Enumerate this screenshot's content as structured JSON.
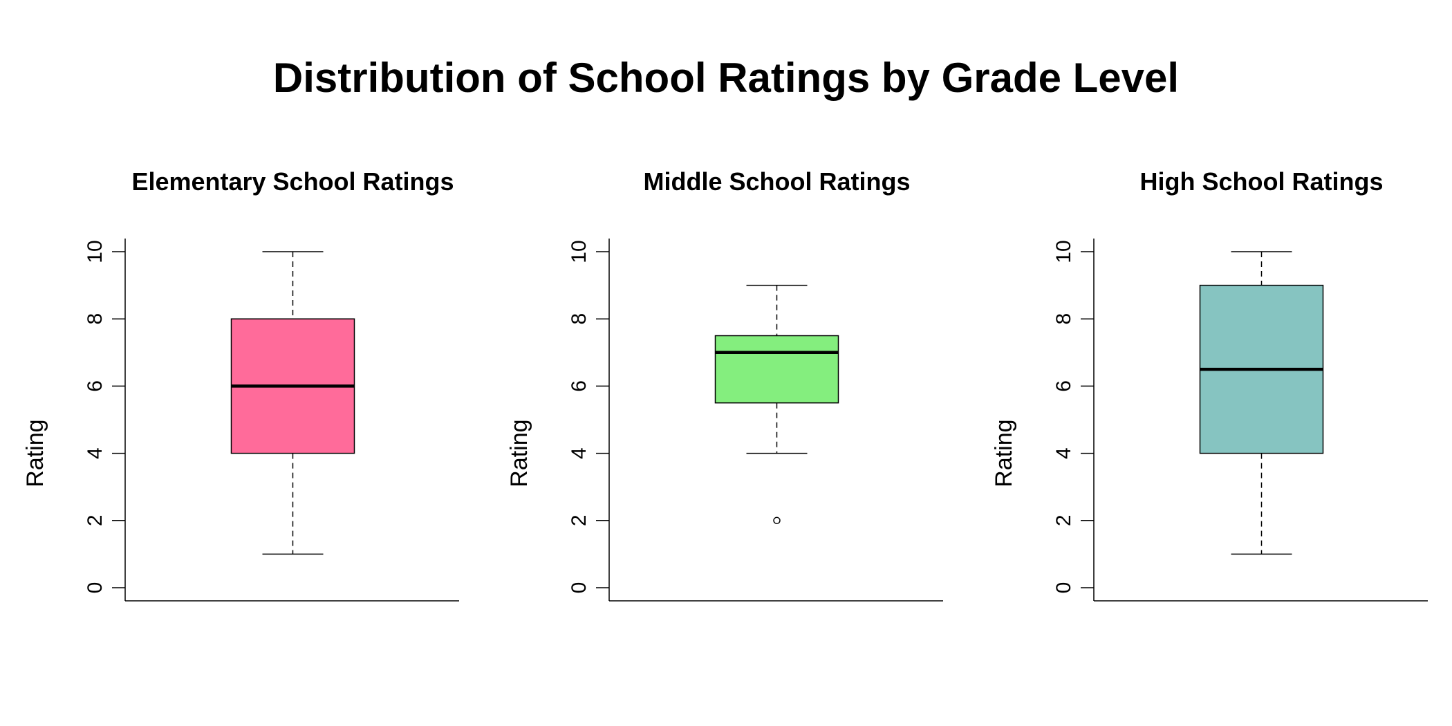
{
  "title": "Distribution of School Ratings by Grade Level",
  "chart_data": [
    {
      "type": "boxplot",
      "title": "Elementary School Ratings",
      "ylabel": "Rating",
      "xlabel": "",
      "ylim": [
        0,
        10
      ],
      "yticks": [
        0,
        2,
        4,
        6,
        8,
        10
      ],
      "yticklabels": [
        "0",
        "2",
        "4",
        "6",
        "8",
        "10"
      ],
      "fill": "#FF6B9A",
      "stats": {
        "whisker_low": 1,
        "q1": 4,
        "median": 6,
        "q3": 8,
        "whisker_high": 10,
        "outliers": []
      }
    },
    {
      "type": "boxplot",
      "title": "Middle School Ratings",
      "ylabel": "Rating",
      "xlabel": "",
      "ylim": [
        0,
        10
      ],
      "yticks": [
        0,
        2,
        4,
        6,
        8,
        10
      ],
      "yticklabels": [
        "0",
        "2",
        "4",
        "6",
        "8",
        "10"
      ],
      "fill": "#84EE7E",
      "stats": {
        "whisker_low": 4,
        "q1": 5.5,
        "median": 7,
        "q3": 7.5,
        "whisker_high": 9,
        "outliers": [
          2
        ]
      }
    },
    {
      "type": "boxplot",
      "title": "High School Ratings",
      "ylabel": "Rating",
      "xlabel": "",
      "ylim": [
        0,
        10
      ],
      "yticks": [
        0,
        2,
        4,
        6,
        8,
        10
      ],
      "yticklabels": [
        "0",
        "2",
        "4",
        "6",
        "8",
        "10"
      ],
      "fill": "#86C4C1",
      "stats": {
        "whisker_low": 1,
        "q1": 4,
        "median": 6.5,
        "q3": 9,
        "whisker_high": 10,
        "outliers": []
      }
    }
  ]
}
